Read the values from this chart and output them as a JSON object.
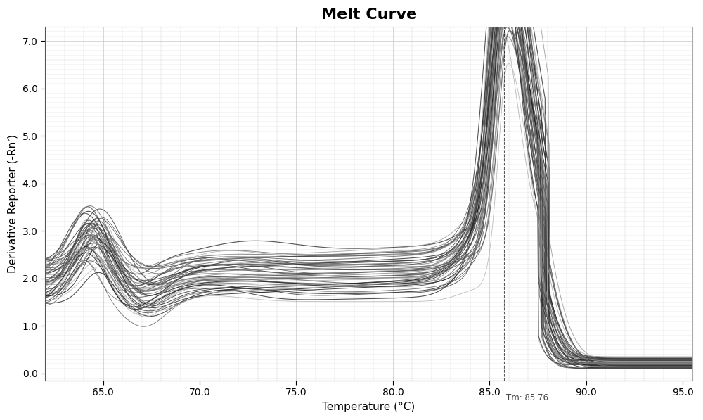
{
  "title": "Melt Curve",
  "xlabel": "Temperature (°C)",
  "ylabel": "Derivative Reporter (-Rnʳ)",
  "xlim": [
    62.0,
    95.5
  ],
  "ylim": [
    -0.15,
    7.3
  ],
  "yticks": [
    0.0,
    1.0,
    2.0,
    3.0,
    4.0,
    5.0,
    6.0,
    7.0
  ],
  "xticks": [
    65.0,
    70.0,
    75.0,
    80.0,
    85.0,
    90.0,
    95.0
  ],
  "tm_line_x": 85.76,
  "tm_label": "Tm: 85.76",
  "n_curves": 50,
  "background_color": "#ffffff",
  "grid_color": "#c8c8c8",
  "title_fontsize": 16,
  "axis_label_fontsize": 11,
  "tick_label_fontsize": 10
}
